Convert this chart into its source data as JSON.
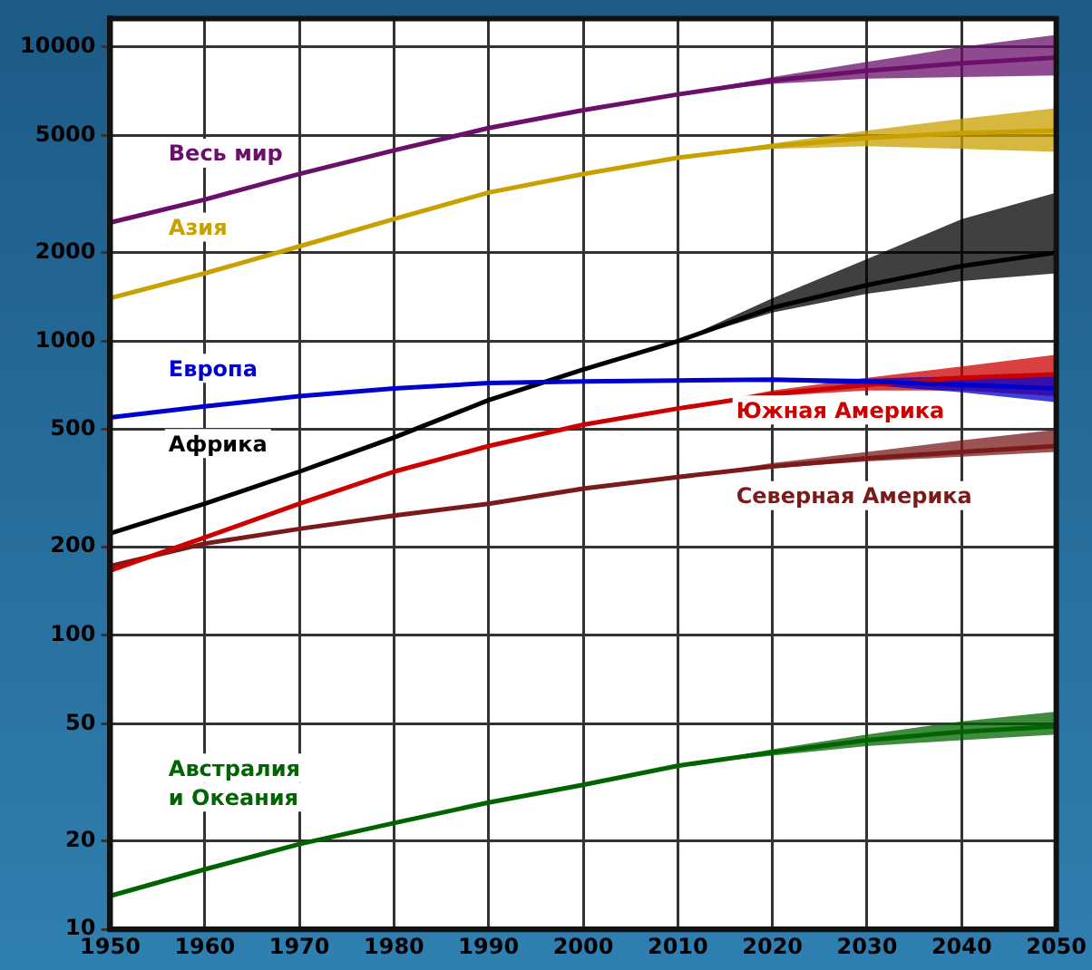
{
  "chart_data": {
    "type": "line",
    "log": "y",
    "grid": true,
    "legend": false,
    "marker": "none",
    "x": [
      1950,
      1960,
      1970,
      1980,
      1990,
      2000,
      2010,
      2020,
      2030,
      2040,
      2050
    ],
    "xlim": [
      1950,
      2050
    ],
    "xticks": [
      1950,
      1960,
      1970,
      1980,
      1990,
      2000,
      2010,
      2020,
      2030,
      2040,
      2050
    ],
    "ylim": [
      10,
      12500
    ],
    "yticks": [
      10,
      20,
      50,
      100,
      200,
      500,
      1000,
      2000,
      5000,
      10000
    ],
    "series": [
      {
        "name": "Весь мир",
        "color": "#6a0f6a",
        "values": [
          2530,
          3030,
          3700,
          4450,
          5300,
          6100,
          6900,
          7700,
          8300,
          8800,
          9200
        ],
        "lower": [
          null,
          null,
          null,
          null,
          null,
          null,
          6900,
          7500,
          7800,
          7900,
          8000
        ],
        "upper": [
          null,
          null,
          null,
          null,
          null,
          null,
          6900,
          7900,
          8900,
          10000,
          11000
        ]
      },
      {
        "name": "Азия",
        "color": "#c8a000",
        "values": [
          1400,
          1700,
          2100,
          2600,
          3200,
          3700,
          4200,
          4600,
          4900,
          5100,
          5200
        ],
        "lower": [
          null,
          null,
          null,
          null,
          null,
          null,
          4200,
          4500,
          4600,
          4500,
          4400
        ],
        "upper": [
          null,
          null,
          null,
          null,
          null,
          null,
          4200,
          4700,
          5200,
          5700,
          6200
        ]
      },
      {
        "name": "Европа",
        "color": "#0000cc",
        "values": [
          550,
          600,
          650,
          690,
          720,
          730,
          735,
          740,
          730,
          710,
          690
        ],
        "lower": [
          null,
          null,
          null,
          null,
          null,
          null,
          735,
          730,
          710,
          670,
          620
        ],
        "upper": [
          null,
          null,
          null,
          null,
          null,
          null,
          735,
          745,
          745,
          760,
          770
        ]
      },
      {
        "name": "Африка",
        "color": "#000000",
        "values": [
          222,
          280,
          360,
          470,
          630,
          800,
          1000,
          1300,
          1550,
          1800,
          2000
        ],
        "lower": [
          null,
          null,
          null,
          null,
          null,
          null,
          1000,
          1250,
          1450,
          1600,
          1700
        ],
        "upper": [
          null,
          null,
          null,
          null,
          null,
          null,
          1000,
          1400,
          1900,
          2600,
          3200
        ]
      },
      {
        "name": "Южная Америка",
        "color": "#cc0000",
        "values": [
          166,
          215,
          280,
          360,
          440,
          520,
          590,
          660,
          710,
          750,
          770
        ],
        "lower": [
          null,
          null,
          null,
          null,
          null,
          null,
          590,
          650,
          680,
          680,
          650
        ],
        "upper": [
          null,
          null,
          null,
          null,
          null,
          null,
          590,
          680,
          750,
          820,
          900
        ]
      },
      {
        "name": "Северная Америка",
        "color": "#7a1a1a",
        "values": [
          172,
          205,
          230,
          255,
          280,
          315,
          345,
          375,
          400,
          420,
          440
        ],
        "lower": [
          null,
          null,
          null,
          null,
          null,
          null,
          345,
          370,
          390,
          405,
          420
        ],
        "upper": [
          null,
          null,
          null,
          null,
          null,
          null,
          345,
          385,
          420,
          460,
          500
        ]
      },
      {
        "name": "Австралия и Океания",
        "color": "#006400",
        "values": [
          13,
          16,
          19.5,
          23,
          27,
          31,
          36,
          40,
          44,
          47,
          49
        ],
        "lower": [
          null,
          null,
          null,
          null,
          null,
          null,
          36,
          39,
          42,
          44,
          46
        ],
        "upper": [
          null,
          null,
          null,
          null,
          null,
          null,
          36,
          41,
          46,
          51,
          55
        ]
      }
    ]
  }
}
